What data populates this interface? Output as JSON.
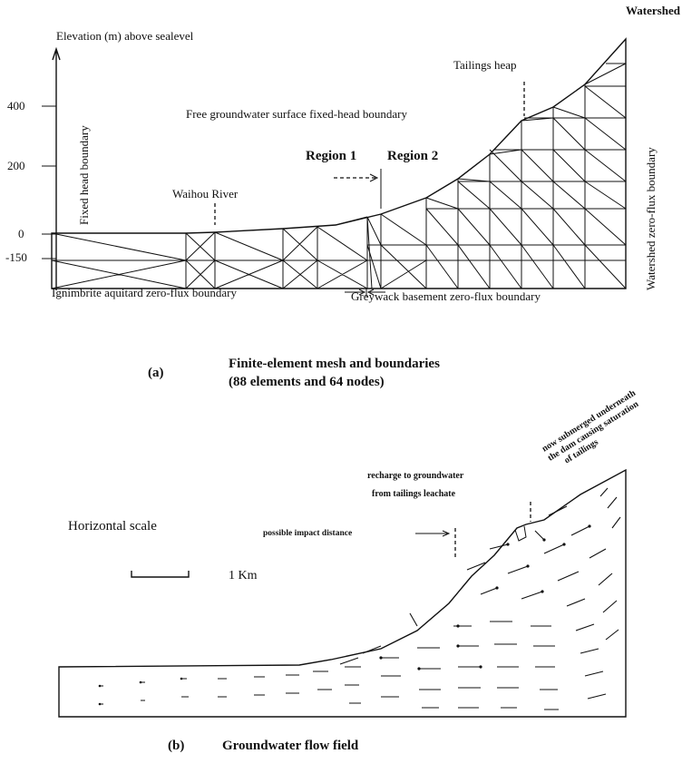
{
  "panel_a": {
    "axis_title": "Elevation (m) above sealevel",
    "elevation_ticks": [
      "400",
      "200",
      "0",
      "-150"
    ],
    "top_right": "Watershed",
    "left_boundary": "Fixed head boundary",
    "right_boundary": "Watershed zero-flux boundary",
    "tailings": "Tailings heap",
    "surface_boundary": "Free groundwater surface fixed-head boundary",
    "region_1": "Region 1",
    "region_2": "Region 2",
    "river": "Waihou River",
    "bottom_left": "Ignimbrite aquitard zero-flux boundary",
    "bottom_right": "Greywack basement zero-flux boundary",
    "caption_letter": "(a)",
    "caption": [
      "Finite-element mesh and boundaries",
      "(88 elements and 64 nodes)"
    ]
  },
  "panel_b": {
    "submerged_note": [
      "now submerged underneath",
      "the dam causing saturation",
      "of tailings"
    ],
    "recharge_note": [
      "recharge to groundwater",
      "from tailings leachate"
    ],
    "impact_note": "possible impact distance",
    "scale_title": "Horizontal scale",
    "scale_label": "1 Km",
    "caption_letter": "(b)",
    "caption": "Groundwater flow field"
  }
}
